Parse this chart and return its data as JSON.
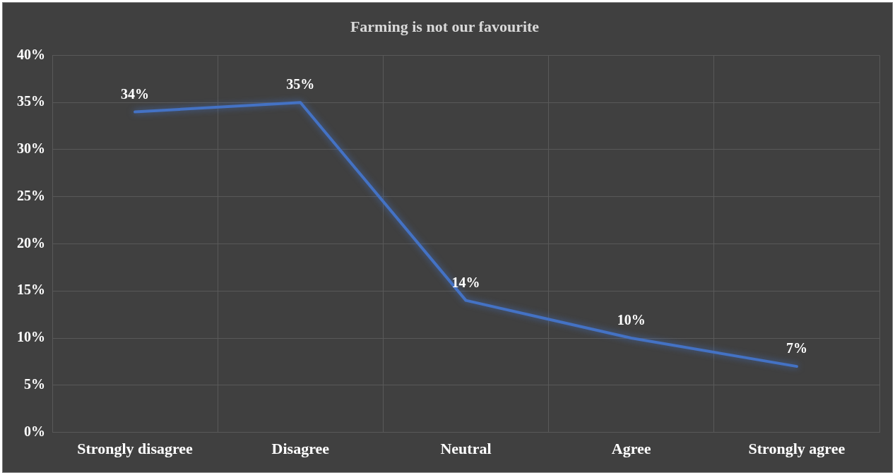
{
  "chart_data": {
    "type": "line",
    "title": "Farming is not our favourite",
    "categories": [
      "Strongly disagree",
      "Disagree",
      "Neutral",
      "Agree",
      "Strongly agree"
    ],
    "series": [
      {
        "color": "#4472c4",
        "values": [
          34,
          35,
          14,
          10,
          7
        ]
      }
    ],
    "value_labels": [
      "34%",
      "35%",
      "14%",
      "10%",
      "7%"
    ],
    "ylim": [
      0,
      40
    ],
    "yticks": [
      {
        "value": 0,
        "label": "0%"
      },
      {
        "value": 5,
        "label": "5%"
      },
      {
        "value": 10,
        "label": "10%"
      },
      {
        "value": 15,
        "label": "15%"
      },
      {
        "value": 20,
        "label": "20%"
      },
      {
        "value": 25,
        "label": "25%"
      },
      {
        "value": 30,
        "label": "30%"
      },
      {
        "value": 35,
        "label": "35%"
      },
      {
        "value": 40,
        "label": "40%"
      }
    ],
    "grid": true,
    "legend": false,
    "marker": "none",
    "line_style": "solid"
  }
}
